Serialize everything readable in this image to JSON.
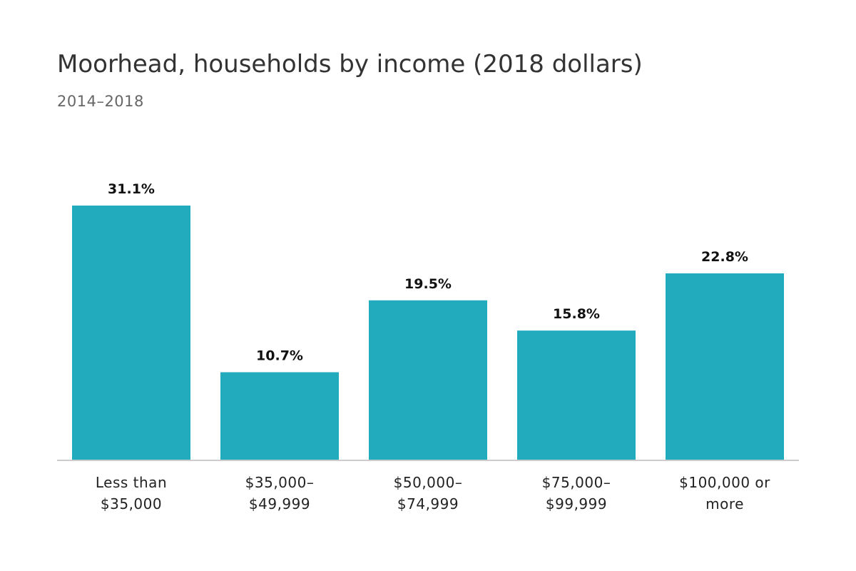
{
  "chart_data": {
    "type": "bar",
    "title": "Moorhead, households by income (2018 dollars)",
    "subtitle": "2014–2018",
    "categories": [
      [
        "Less than",
        "$35,000"
      ],
      [
        "$35,000–",
        "$49,999"
      ],
      [
        "$50,000–",
        "$74,999"
      ],
      [
        "$75,000–",
        "$99,999"
      ],
      [
        "$100,000 or",
        "more"
      ]
    ],
    "values": [
      31.1,
      10.7,
      19.5,
      15.8,
      22.8
    ],
    "value_labels": [
      "31.1%",
      "10.7%",
      "19.5%",
      "15.8%",
      "22.8%"
    ],
    "xlabel": "",
    "ylabel": "",
    "ylim": [
      0,
      31.1
    ],
    "grid": false,
    "colors": {
      "bar": "#21abbd",
      "axis": "#cccccc"
    }
  }
}
